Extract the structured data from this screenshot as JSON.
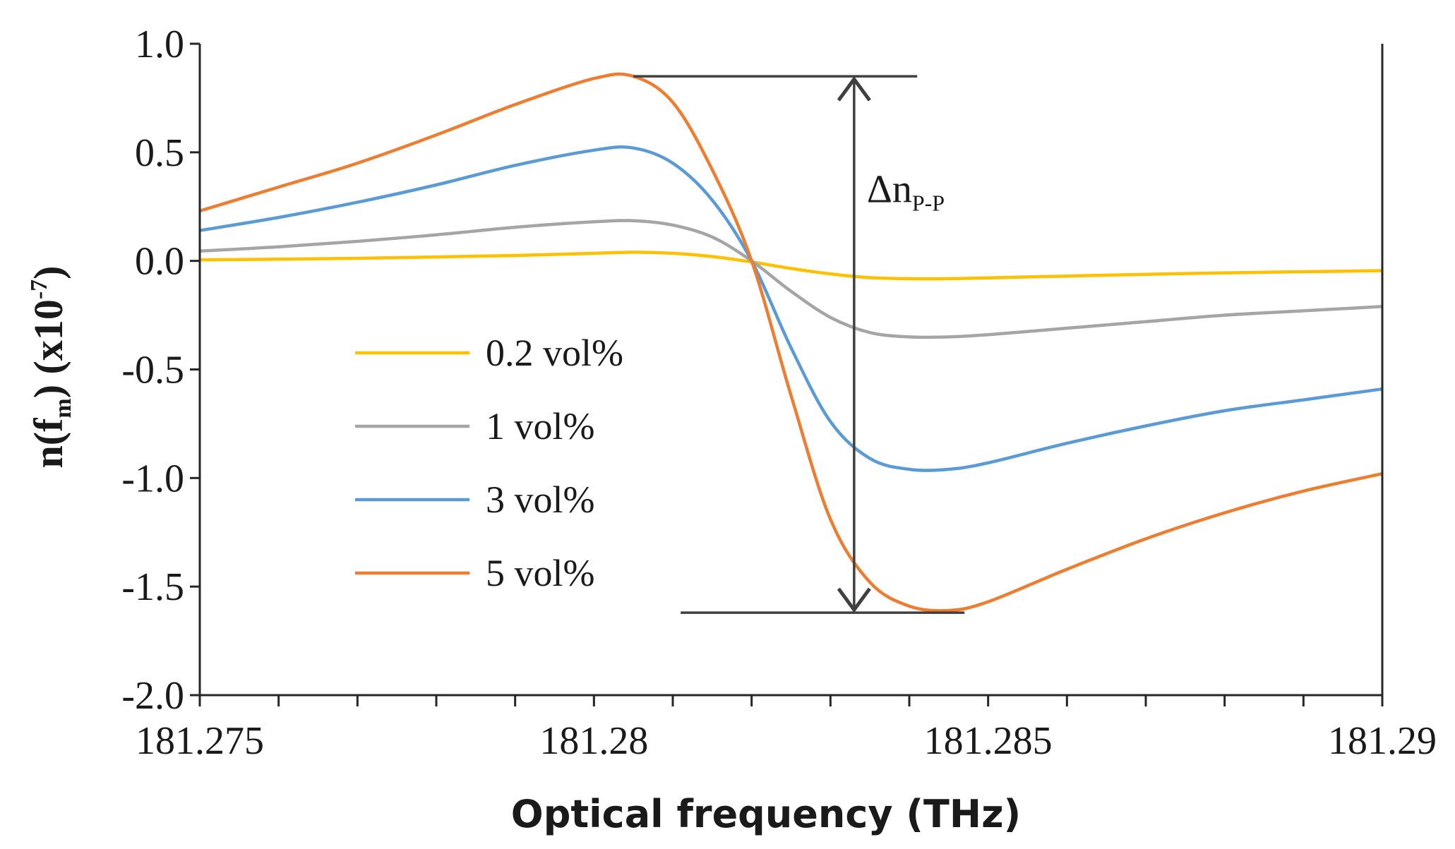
{
  "chart_data": {
    "type": "line",
    "title": "",
    "xlabel": "Optical frequency (THz)",
    "ylabel": {
      "n": "n(f",
      "sub": "m",
      "close": ") (x10",
      "sup": "-7",
      "end": ")"
    },
    "xlim": [
      181.275,
      181.29
    ],
    "ylim": [
      -2.0,
      1.0
    ],
    "x_ticks": [
      181.275,
      181.28,
      181.285,
      181.29
    ],
    "x_tick_labels": [
      "181.275",
      "181.28",
      "181.285",
      "181.29"
    ],
    "y_ticks": [
      1.0,
      0.5,
      0.0,
      -0.5,
      -1.0,
      -1.5,
      -2.0
    ],
    "y_tick_labels": [
      "1.0",
      "0.5",
      "0.0",
      "-0.5",
      "-1.0",
      "-1.5",
      "-2.0"
    ],
    "grid": false,
    "legend_position": "left-center",
    "series": [
      {
        "name": "0.2 vol%",
        "color": "#FFC000",
        "x": [
          181.275,
          181.276,
          181.277,
          181.278,
          181.279,
          181.28,
          181.2805,
          181.281,
          181.2815,
          181.282,
          181.2825,
          181.283,
          181.2835,
          181.284,
          181.2845,
          181.285,
          181.286,
          181.287,
          181.288,
          181.289,
          181.29
        ],
        "y": [
          0.005,
          0.008,
          0.012,
          0.018,
          0.025,
          0.035,
          0.04,
          0.035,
          0.02,
          -0.005,
          -0.035,
          -0.06,
          -0.077,
          -0.082,
          -0.082,
          -0.078,
          -0.07,
          -0.062,
          -0.055,
          -0.05,
          -0.045
        ]
      },
      {
        "name": "1 vol%",
        "color": "#A5A5A5",
        "x": [
          181.275,
          181.276,
          181.277,
          181.278,
          181.279,
          181.28,
          181.2805,
          181.281,
          181.2815,
          181.282,
          181.2825,
          181.283,
          181.2835,
          181.284,
          181.2845,
          181.285,
          181.286,
          181.287,
          181.288,
          181.289,
          181.29
        ],
        "y": [
          0.045,
          0.065,
          0.09,
          0.12,
          0.155,
          0.18,
          0.185,
          0.165,
          0.11,
          0.0,
          -0.14,
          -0.26,
          -0.33,
          -0.35,
          -0.35,
          -0.34,
          -0.31,
          -0.28,
          -0.25,
          -0.23,
          -0.21
        ]
      },
      {
        "name": "3 vol%",
        "color": "#5B9BD5",
        "x": [
          181.275,
          181.276,
          181.277,
          181.278,
          181.279,
          181.28,
          181.2805,
          181.281,
          181.2815,
          181.282,
          181.2825,
          181.283,
          181.2835,
          181.284,
          181.2845,
          181.285,
          181.286,
          181.287,
          181.288,
          181.289,
          181.29
        ],
        "y": [
          0.14,
          0.2,
          0.27,
          0.35,
          0.44,
          0.51,
          0.52,
          0.45,
          0.28,
          0.0,
          -0.4,
          -0.74,
          -0.91,
          -0.96,
          -0.96,
          -0.93,
          -0.84,
          -0.76,
          -0.69,
          -0.64,
          -0.59
        ]
      },
      {
        "name": "5 vol%",
        "color": "#ED7D31",
        "x": [
          181.275,
          181.276,
          181.277,
          181.278,
          181.279,
          181.28,
          181.2805,
          181.281,
          181.2815,
          181.282,
          181.2825,
          181.283,
          181.2835,
          181.284,
          181.2845,
          181.285,
          181.286,
          181.287,
          181.288,
          181.289,
          181.29
        ],
        "y": [
          0.23,
          0.34,
          0.45,
          0.58,
          0.72,
          0.84,
          0.85,
          0.73,
          0.42,
          0.0,
          -0.62,
          -1.19,
          -1.48,
          -1.59,
          -1.61,
          -1.57,
          -1.42,
          -1.28,
          -1.16,
          -1.06,
          -0.98
        ]
      }
    ],
    "annotation": {
      "label": "Δn",
      "sub": "P-P",
      "x": 181.2833,
      "y_top": 0.85,
      "y_bottom": -1.62,
      "top_bar_x": [
        181.2805,
        181.2841
      ],
      "bottom_bar_x": [
        181.2811,
        181.2847
      ]
    }
  }
}
